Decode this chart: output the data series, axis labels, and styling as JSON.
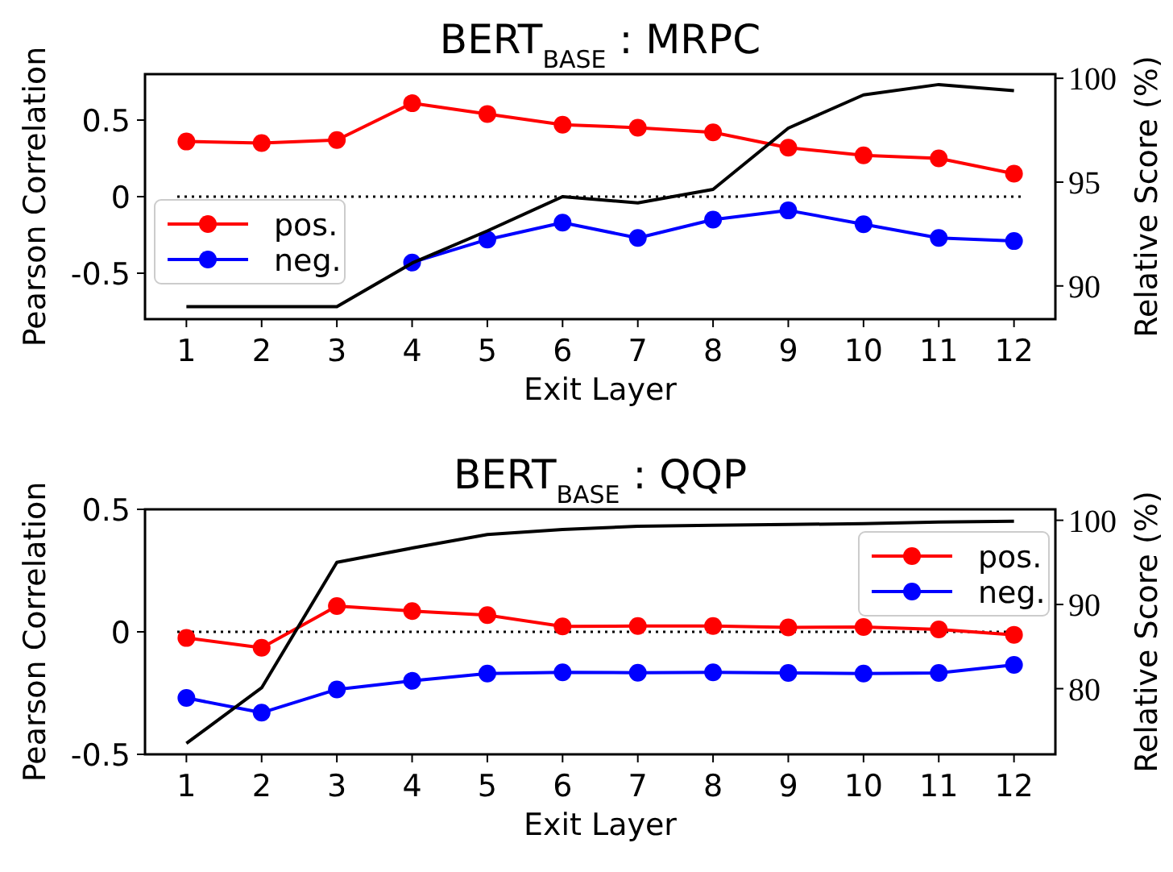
{
  "chart_data": [
    {
      "type": "line",
      "title": "BERT$_{BASE}$ : MRPC",
      "xlabel": "Exit Layer",
      "ylabel": "Pearson Correlation",
      "y2label": "Relative Score (%)",
      "x": [
        1,
        2,
        3,
        4,
        5,
        6,
        7,
        8,
        9,
        10,
        11,
        12
      ],
      "xlim": [
        0.45,
        12.55
      ],
      "xticks": [
        1,
        2,
        3,
        4,
        5,
        6,
        7,
        8,
        9,
        10,
        11,
        12
      ],
      "ylim": [
        -0.8,
        0.8
      ],
      "yticks": [
        {
          "value": 0.5,
          "label": "0.5"
        },
        {
          "value": 0,
          "label": "0"
        },
        {
          "value": -0.5,
          "label": "-0.5"
        }
      ],
      "y2lim": [
        88.4,
        100.2
      ],
      "y2ticks": [
        90,
        95,
        100
      ],
      "legend": "bottom left",
      "marker": "circle",
      "line_style": "solid",
      "grid": false,
      "ref_lines": [
        {
          "axis": "y",
          "value": 0,
          "color": "#000000",
          "line_style": "dotted"
        }
      ],
      "series": [
        {
          "name": "pos.",
          "color": "#ff0000",
          "values": [
            0.36,
            0.35,
            0.37,
            0.61,
            0.54,
            0.47,
            0.45,
            0.42,
            0.32,
            0.27,
            0.25,
            0.15
          ]
        },
        {
          "name": "neg.",
          "color": "#0000ff",
          "values": [
            null,
            null,
            null,
            -0.43,
            -0.28,
            -0.17,
            -0.27,
            -0.15,
            -0.09,
            -0.18,
            -0.27,
            -0.29
          ]
        },
        {
          "color": "#000000",
          "axis": "y2",
          "marker": "none",
          "values": [
            89.0,
            89.0,
            89.0,
            91.1,
            92.65,
            94.3,
            94.0,
            94.65,
            97.6,
            99.2,
            99.7,
            99.4
          ]
        }
      ]
    },
    {
      "type": "line",
      "title": "BERT$_{BASE}$ : QQP",
      "xlabel": "Exit Layer",
      "ylabel": "Pearson Correlation",
      "y2label": "Relative Score (%)",
      "x": [
        1,
        2,
        3,
        4,
        5,
        6,
        7,
        8,
        9,
        10,
        11,
        12
      ],
      "xlim": [
        0.45,
        12.55
      ],
      "xticks": [
        1,
        2,
        3,
        4,
        5,
        6,
        7,
        8,
        9,
        10,
        11,
        12
      ],
      "ylim": [
        -0.5,
        0.5
      ],
      "yticks": [
        {
          "value": 0.5,
          "label": "0.5"
        },
        {
          "value": 0,
          "label": "0"
        },
        {
          "value": -0.5,
          "label": "-0.5"
        }
      ],
      "y2lim": [
        72.2,
        101.3
      ],
      "y2ticks": [
        80,
        90,
        100
      ],
      "legend": "top right",
      "marker": "circle",
      "line_style": "solid",
      "grid": false,
      "ref_lines": [
        {
          "axis": "y",
          "value": 0,
          "color": "#000000",
          "line_style": "dotted"
        }
      ],
      "series": [
        {
          "name": "pos.",
          "color": "#ff0000",
          "values": [
            -0.025,
            -0.065,
            0.105,
            0.085,
            0.068,
            0.022,
            0.024,
            0.024,
            0.018,
            0.02,
            0.01,
            -0.012
          ]
        },
        {
          "name": "neg.",
          "color": "#0000ff",
          "values": [
            -0.27,
            -0.33,
            -0.235,
            -0.2,
            -0.17,
            -0.165,
            -0.167,
            -0.165,
            -0.168,
            -0.17,
            -0.168,
            -0.135
          ]
        },
        {
          "color": "#000000",
          "axis": "y2",
          "marker": "none",
          "values": [
            73.5,
            80.1,
            95.0,
            96.7,
            98.3,
            98.9,
            99.3,
            99.4,
            99.5,
            99.6,
            99.8,
            99.9
          ]
        }
      ]
    }
  ]
}
